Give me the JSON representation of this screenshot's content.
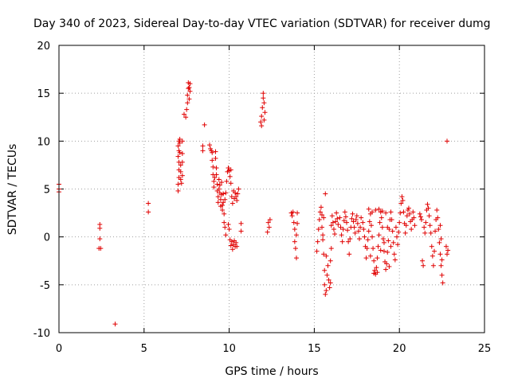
{
  "chart_data": {
    "type": "scatter",
    "title": "Day 340 of 2023, Sidereal Day-to-day VTEC variation (SDTVAR) for receiver dumg",
    "xlabel": "GPS time / hours",
    "ylabel": "SDTVAR / TECUs",
    "xlim": [
      0,
      25
    ],
    "ylim": [
      -10,
      20
    ],
    "xticks": [
      0,
      5,
      10,
      15,
      20,
      25
    ],
    "yticks": [
      -10,
      -5,
      0,
      5,
      10,
      15,
      20
    ],
    "grid": true,
    "marker": "+",
    "color": "#e00000",
    "series": [
      {
        "name": "SDTVAR",
        "points": [
          [
            0.0,
            5.5
          ],
          [
            0.0,
            5.0
          ],
          [
            0.0,
            4.7
          ],
          [
            2.4,
            1.3
          ],
          [
            2.4,
            0.9
          ],
          [
            2.4,
            -0.2
          ],
          [
            2.35,
            -1.2
          ],
          [
            2.45,
            -1.2
          ],
          [
            3.3,
            -9.1
          ],
          [
            5.25,
            3.5
          ],
          [
            5.25,
            2.6
          ],
          [
            7.0,
            4.8
          ],
          [
            7.0,
            5.5
          ],
          [
            7.05,
            6.2
          ],
          [
            7.05,
            7.0
          ],
          [
            7.05,
            7.8
          ],
          [
            7.0,
            8.4
          ],
          [
            7.05,
            9.0
          ],
          [
            7.0,
            9.5
          ],
          [
            7.05,
            10.0
          ],
          [
            7.1,
            10.2
          ],
          [
            7.1,
            9.8
          ],
          [
            7.1,
            8.8
          ],
          [
            7.15,
            7.5
          ],
          [
            7.15,
            6.8
          ],
          [
            7.15,
            6.0
          ],
          [
            7.2,
            5.6
          ],
          [
            7.25,
            6.4
          ],
          [
            7.25,
            7.8
          ],
          [
            7.25,
            8.7
          ],
          [
            7.25,
            10.0
          ],
          [
            7.35,
            12.8
          ],
          [
            7.45,
            12.5
          ],
          [
            7.5,
            13.3
          ],
          [
            7.55,
            14.0
          ],
          [
            7.55,
            14.8
          ],
          [
            7.6,
            15.5
          ],
          [
            7.6,
            16.1
          ],
          [
            7.65,
            15.6
          ],
          [
            7.65,
            14.4
          ],
          [
            7.7,
            15.2
          ],
          [
            7.7,
            16.0
          ],
          [
            8.45,
            9.5
          ],
          [
            8.45,
            9.0
          ],
          [
            8.55,
            11.7
          ],
          [
            8.85,
            9.6
          ],
          [
            8.9,
            9.2
          ],
          [
            8.95,
            9.0
          ],
          [
            9.0,
            8.8
          ],
          [
            9.0,
            8.0
          ],
          [
            9.05,
            7.3
          ],
          [
            9.05,
            6.5
          ],
          [
            9.1,
            5.8
          ],
          [
            9.1,
            5.2
          ],
          [
            9.15,
            6.2
          ],
          [
            9.2,
            8.9
          ],
          [
            9.2,
            8.2
          ],
          [
            9.25,
            7.2
          ],
          [
            9.25,
            6.5
          ],
          [
            9.3,
            5.5
          ],
          [
            9.3,
            4.8
          ],
          [
            9.35,
            4.2
          ],
          [
            9.35,
            3.6
          ],
          [
            9.4,
            5.0
          ],
          [
            9.4,
            6.0
          ],
          [
            9.45,
            5.4
          ],
          [
            9.45,
            4.6
          ],
          [
            9.5,
            3.9
          ],
          [
            9.5,
            3.2
          ],
          [
            9.55,
            4.4
          ],
          [
            9.55,
            5.7
          ],
          [
            9.6,
            3.3
          ],
          [
            9.6,
            2.8
          ],
          [
            9.65,
            3.6
          ],
          [
            9.65,
            4.5
          ],
          [
            9.7,
            2.4
          ],
          [
            9.7,
            1.5
          ],
          [
            9.75,
            1.0
          ],
          [
            9.8,
            0.2
          ],
          [
            9.75,
            3.9
          ],
          [
            9.8,
            4.6
          ],
          [
            9.85,
            5.8
          ],
          [
            9.9,
            6.8
          ],
          [
            9.95,
            7.2
          ],
          [
            10.0,
            6.9
          ],
          [
            10.05,
            6.3
          ],
          [
            10.1,
            7.0
          ],
          [
            10.1,
            5.6
          ],
          [
            10.15,
            4.2
          ],
          [
            10.2,
            3.5
          ],
          [
            10.25,
            4.8
          ],
          [
            10.3,
            4.0
          ],
          [
            10.35,
            4.6
          ],
          [
            10.4,
            4.2
          ],
          [
            10.45,
            3.8
          ],
          [
            10.5,
            4.5
          ],
          [
            10.55,
            5.0
          ],
          [
            9.95,
            1.3
          ],
          [
            10.0,
            0.8
          ],
          [
            10.05,
            -0.3
          ],
          [
            10.1,
            -0.9
          ],
          [
            10.15,
            -0.5
          ],
          [
            10.2,
            -1.3
          ],
          [
            10.25,
            -0.8
          ],
          [
            10.3,
            -0.4
          ],
          [
            10.35,
            -1.0
          ],
          [
            10.4,
            -0.6
          ],
          [
            10.45,
            -1.0
          ],
          [
            10.7,
            1.4
          ],
          [
            10.7,
            0.6
          ],
          [
            11.85,
            12.0
          ],
          [
            11.9,
            12.6
          ],
          [
            11.9,
            11.6
          ],
          [
            11.95,
            13.5
          ],
          [
            12.0,
            14.5
          ],
          [
            12.0,
            15.0
          ],
          [
            12.05,
            14.0
          ],
          [
            12.1,
            13.0
          ],
          [
            12.05,
            12.2
          ],
          [
            12.25,
            0.5
          ],
          [
            12.3,
            1.5
          ],
          [
            12.35,
            1.0
          ],
          [
            12.4,
            1.8
          ],
          [
            13.65,
            2.5
          ],
          [
            13.7,
            2.2
          ],
          [
            13.75,
            2.6
          ],
          [
            13.8,
            1.5
          ],
          [
            13.85,
            0.8
          ],
          [
            13.85,
            -0.5
          ],
          [
            13.9,
            -1.2
          ],
          [
            13.95,
            -2.2
          ],
          [
            13.95,
            0.2
          ],
          [
            14.0,
            2.5
          ],
          [
            14.0,
            1.4
          ],
          [
            15.15,
            -1.5
          ],
          [
            15.2,
            -0.5
          ],
          [
            15.25,
            0.8
          ],
          [
            15.3,
            1.8
          ],
          [
            15.35,
            2.6
          ],
          [
            15.4,
            3.1
          ],
          [
            15.45,
            2.3
          ],
          [
            15.45,
            1.0
          ],
          [
            15.5,
            -0.3
          ],
          [
            15.55,
            -1.8
          ],
          [
            15.6,
            -3.5
          ],
          [
            15.6,
            -5.0
          ],
          [
            15.65,
            -6.0
          ],
          [
            15.7,
            -5.6
          ],
          [
            15.75,
            -4.0
          ],
          [
            15.8,
            -3.0
          ],
          [
            15.85,
            -4.5
          ],
          [
            15.9,
            -5.3
          ],
          [
            15.95,
            -4.8
          ],
          [
            15.95,
            -2.5
          ],
          [
            16.0,
            -1.2
          ],
          [
            15.65,
            4.5
          ],
          [
            15.55,
            2.0
          ],
          [
            15.5,
            0.2
          ],
          [
            15.7,
            -2.0
          ],
          [
            16.0,
            1.2
          ],
          [
            16.05,
            2.2
          ],
          [
            16.1,
            1.5
          ],
          [
            16.15,
            0.8
          ],
          [
            16.2,
            0.3
          ],
          [
            16.25,
            1.6
          ],
          [
            16.3,
            2.5
          ],
          [
            16.35,
            1.9
          ],
          [
            16.4,
            1.3
          ],
          [
            16.5,
            2.0
          ],
          [
            16.55,
            1.0
          ],
          [
            16.6,
            0.2
          ],
          [
            16.65,
            -0.5
          ],
          [
            16.7,
            0.8
          ],
          [
            16.75,
            1.7
          ],
          [
            16.8,
            2.6
          ],
          [
            16.85,
            2.1
          ],
          [
            16.9,
            1.5
          ],
          [
            16.95,
            0.7
          ],
          [
            17.0,
            -0.5
          ],
          [
            17.05,
            -1.8
          ],
          [
            17.1,
            -0.2
          ],
          [
            17.15,
            1.0
          ],
          [
            17.2,
            1.9
          ],
          [
            17.25,
            2.4
          ],
          [
            17.3,
            1.6
          ],
          [
            17.35,
            1.0
          ],
          [
            17.4,
            0.4
          ],
          [
            17.45,
            1.8
          ],
          [
            17.5,
            2.2
          ],
          [
            17.55,
            1.4
          ],
          [
            17.6,
            0.6
          ],
          [
            17.65,
            -0.2
          ],
          [
            17.7,
            1.0
          ],
          [
            17.75,
            2.0
          ],
          [
            17.85,
            1.5
          ],
          [
            17.9,
            0.8
          ],
          [
            17.95,
            0.0
          ],
          [
            18.0,
            -1.0
          ],
          [
            18.05,
            -2.2
          ],
          [
            18.1,
            -1.2
          ],
          [
            18.15,
            -0.3
          ],
          [
            18.2,
            0.6
          ],
          [
            18.25,
            1.6
          ],
          [
            18.3,
            2.4
          ],
          [
            18.35,
            1.2
          ],
          [
            18.4,
            0.0
          ],
          [
            18.45,
            -1.2
          ],
          [
            18.5,
            -2.5
          ],
          [
            18.55,
            -3.5
          ],
          [
            18.6,
            -3.9
          ],
          [
            18.65,
            -3.2
          ],
          [
            18.7,
            -2.2
          ],
          [
            18.75,
            -1.0
          ],
          [
            18.8,
            0.2
          ],
          [
            18.85,
            1.5
          ],
          [
            18.9,
            2.6
          ],
          [
            18.95,
            2.0
          ],
          [
            19.0,
            1.0
          ],
          [
            19.05,
            -0.2
          ],
          [
            19.1,
            -1.5
          ],
          [
            19.15,
            -2.6
          ],
          [
            19.2,
            -3.4
          ],
          [
            19.25,
            -2.8
          ],
          [
            19.3,
            -1.6
          ],
          [
            19.35,
            -0.4
          ],
          [
            19.4,
            0.8
          ],
          [
            19.45,
            1.8
          ],
          [
            19.5,
            2.6
          ],
          [
            19.55,
            1.8
          ],
          [
            19.6,
            0.6
          ],
          [
            19.65,
            -0.6
          ],
          [
            19.7,
            -1.8
          ],
          [
            19.75,
            -2.4
          ],
          [
            18.2,
            2.9
          ],
          [
            18.4,
            2.6
          ],
          [
            18.6,
            2.8
          ],
          [
            18.8,
            2.9
          ],
          [
            19.0,
            2.7
          ],
          [
            19.2,
            2.5
          ],
          [
            18.7,
            -3.7
          ],
          [
            18.5,
            -3.8
          ],
          [
            18.3,
            -2.0
          ],
          [
            19.4,
            -3.1
          ],
          [
            19.5,
            -1.0
          ],
          [
            19.1,
            -0.6
          ],
          [
            18.9,
            -1.4
          ],
          [
            19.3,
            1.0
          ],
          [
            19.8,
            1.0
          ],
          [
            19.85,
            0.0
          ],
          [
            19.9,
            -0.8
          ],
          [
            19.95,
            0.5
          ],
          [
            20.0,
            1.5
          ],
          [
            20.05,
            2.5
          ],
          [
            20.1,
            3.5
          ],
          [
            20.15,
            4.2
          ],
          [
            20.2,
            3.8
          ],
          [
            20.25,
            2.6
          ],
          [
            20.3,
            1.4
          ],
          [
            20.35,
            0.4
          ],
          [
            20.4,
            1.2
          ],
          [
            20.45,
            2.2
          ],
          [
            20.5,
            2.8
          ],
          [
            20.55,
            3.0
          ],
          [
            20.6,
            2.4
          ],
          [
            20.65,
            1.6
          ],
          [
            20.7,
            0.8
          ],
          [
            20.75,
            1.8
          ],
          [
            20.8,
            2.6
          ],
          [
            20.85,
            2.0
          ],
          [
            20.9,
            1.2
          ],
          [
            21.2,
            2.4
          ],
          [
            21.25,
            2.1
          ],
          [
            21.3,
            1.8
          ],
          [
            21.35,
            -2.5
          ],
          [
            21.4,
            -3.0
          ],
          [
            21.45,
            1.0
          ],
          [
            21.5,
            0.4
          ],
          [
            21.55,
            1.5
          ],
          [
            21.6,
            2.8
          ],
          [
            21.65,
            3.4
          ],
          [
            21.7,
            3.0
          ],
          [
            21.75,
            2.2
          ],
          [
            21.8,
            1.2
          ],
          [
            21.85,
            0.4
          ],
          [
            21.9,
            -1.0
          ],
          [
            21.95,
            -2.0
          ],
          [
            22.0,
            -3.0
          ],
          [
            22.05,
            -1.5
          ],
          [
            22.1,
            0.6
          ],
          [
            22.15,
            1.8
          ],
          [
            22.2,
            2.8
          ],
          [
            22.25,
            2.0
          ],
          [
            22.3,
            0.8
          ],
          [
            22.35,
            -0.6
          ],
          [
            22.4,
            -1.8
          ],
          [
            22.45,
            -3.0
          ],
          [
            22.5,
            -4.0
          ],
          [
            22.55,
            -4.8
          ],
          [
            22.5,
            -2.4
          ],
          [
            22.45,
            -0.2
          ],
          [
            22.4,
            1.2
          ],
          [
            22.75,
            -1.0
          ],
          [
            22.8,
            -1.8
          ],
          [
            22.85,
            -1.4
          ],
          [
            22.8,
            10.0
          ]
        ]
      }
    ]
  }
}
